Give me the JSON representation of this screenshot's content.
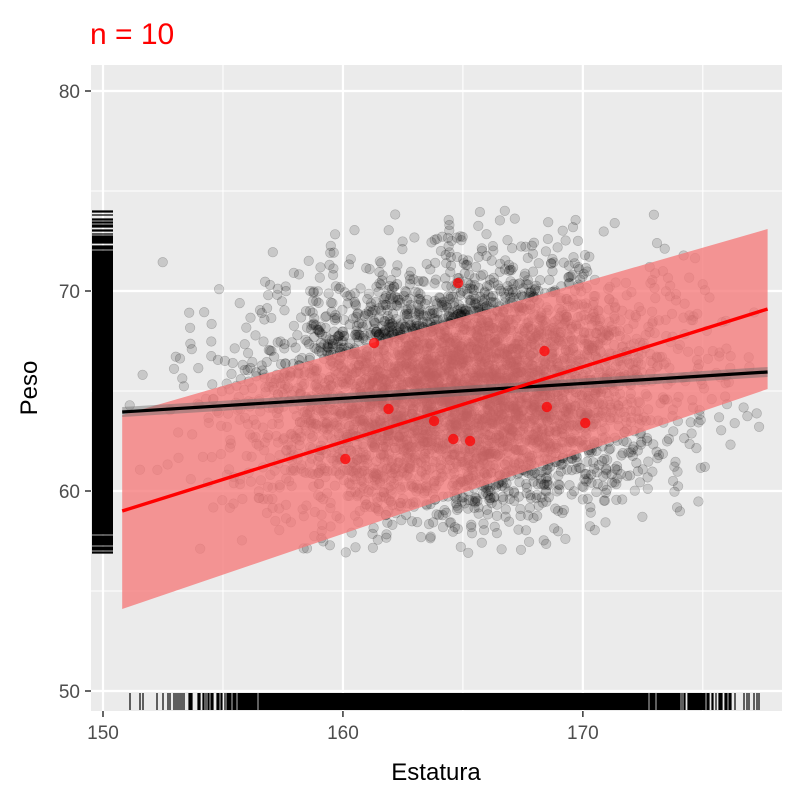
{
  "chart_data": {
    "type": "scatter",
    "title": "n = 10",
    "title_color": "#ff0000",
    "xlabel": "Estatura",
    "ylabel": "Peso",
    "xlim": [
      149.5,
      178.3
    ],
    "ylim": [
      49,
      81.3
    ],
    "x_ticks": [
      150,
      160,
      170
    ],
    "y_ticks": [
      50,
      60,
      70,
      80
    ],
    "grid": true,
    "panel_background": "#ebebeb",
    "population": {
      "n_points_estimated": 5000,
      "x_mean": 165,
      "x_sd": 4.2,
      "y_mean": 65,
      "y_sd": 3.0,
      "correlation": 0.1,
      "x_range": [
        150.8,
        177.7
      ],
      "y_range": [
        56.7,
        74.1
      ],
      "point_color": "#000000",
      "point_alpha": 0.15
    },
    "sample_points": {
      "color": "#ff0000",
      "x": [
        160.1,
        161.3,
        161.9,
        163.8,
        164.6,
        164.8,
        165.3,
        168.4,
        168.5,
        170.1
      ],
      "y": [
        61.6,
        67.4,
        64.1,
        63.5,
        62.6,
        70.4,
        62.5,
        67.0,
        64.2,
        63.4
      ]
    },
    "population_fit": {
      "color": "#000000",
      "x": [
        150.8,
        177.7
      ],
      "y": [
        63.95,
        65.95
      ],
      "band_lower": [
        63.7,
        65.7
      ],
      "band_upper": [
        64.2,
        66.2
      ]
    },
    "sample_fit": {
      "color": "#ff0000",
      "band_color": "#f57a7a",
      "x": [
        150.8,
        177.7
      ],
      "y": [
        59.0,
        69.1
      ],
      "band_lower": [
        54.1,
        65.1
      ],
      "band_upper": [
        63.8,
        73.1
      ]
    },
    "rug": {
      "x_axis": true,
      "y_axis": true,
      "color": "#000000"
    }
  }
}
